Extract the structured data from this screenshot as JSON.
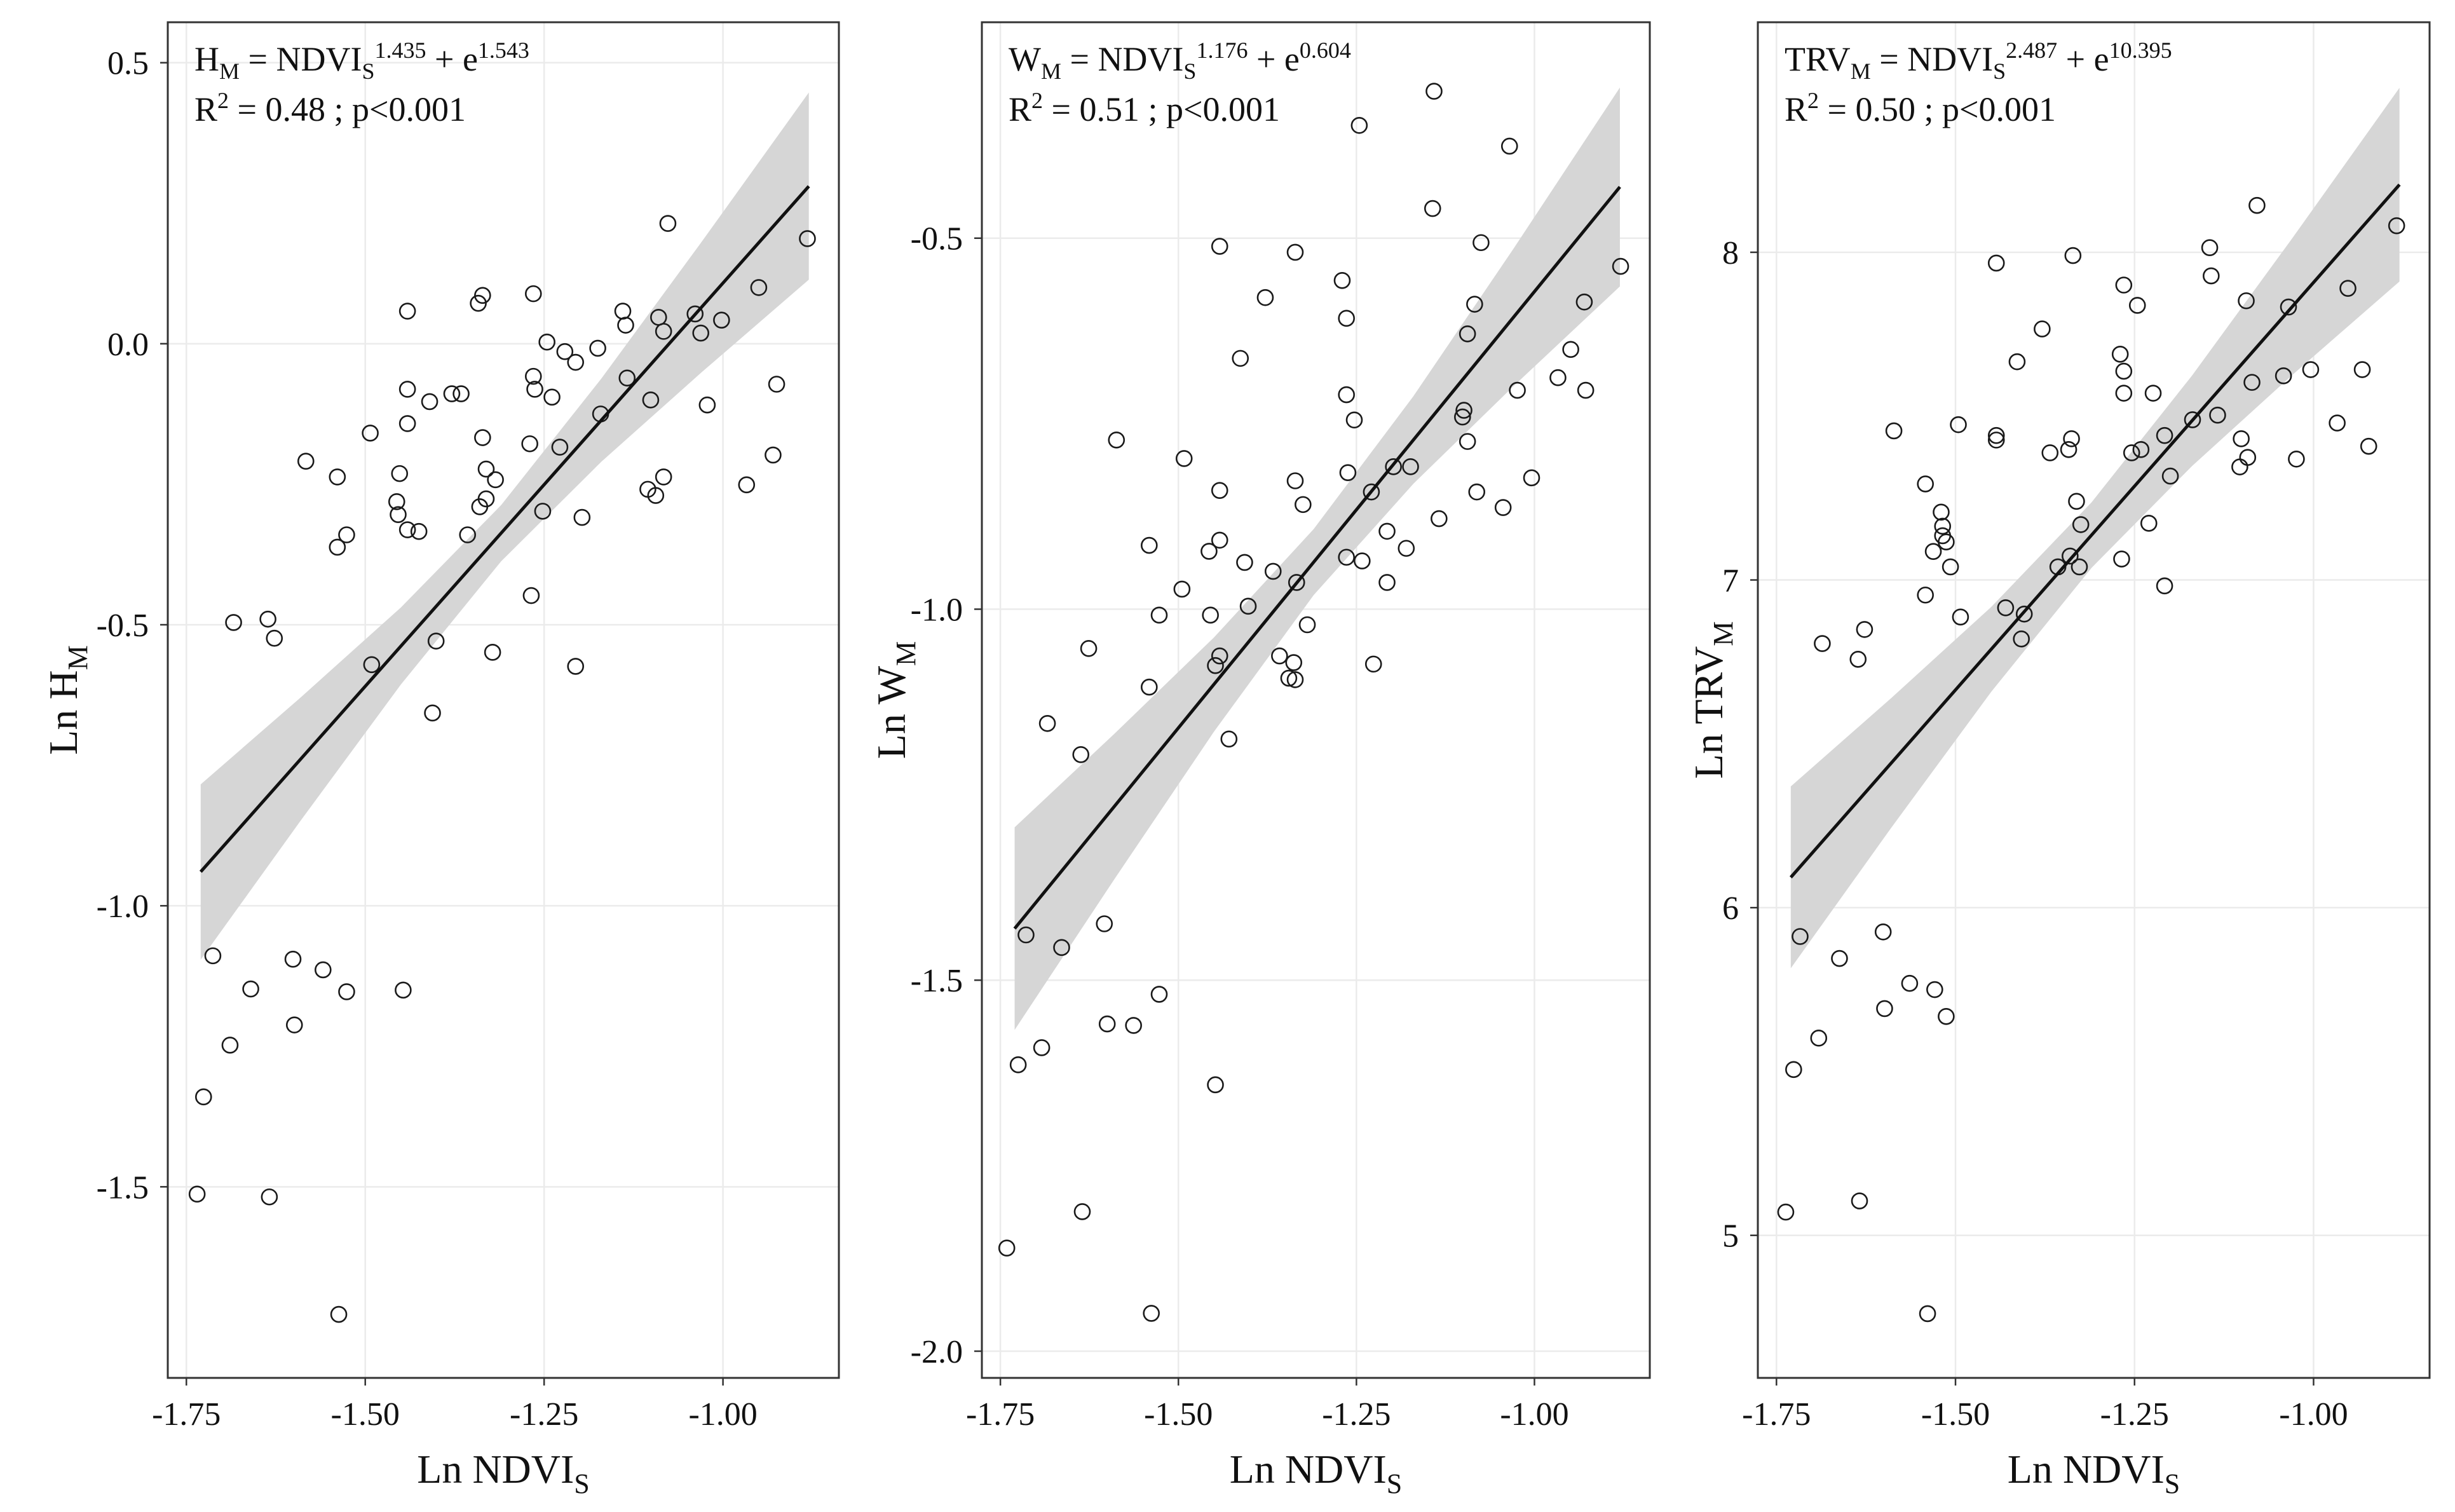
{
  "colors": {
    "points": "#1a1a1a",
    "line": "#111111",
    "band": "#d6d6d6",
    "grid": "#ebebeb",
    "border": "#333333",
    "background": "#ffffff"
  },
  "chart_data": [
    {
      "type": "scatter",
      "xlabel": "Ln NDVI",
      "xlabel_sub": "S",
      "ylabel": "Ln H",
      "ylabel_sub": "M",
      "xlim": [
        -1.776,
        -0.838
      ],
      "ylim": [
        -1.84,
        0.572
      ],
      "x_ticks": [
        -1.75,
        -1.5,
        -1.25,
        -1.0
      ],
      "x_tick_labels": [
        "-1.75",
        "-1.50",
        "-1.25",
        "-1.00"
      ],
      "y_ticks": [
        0.5,
        0.0,
        -0.5,
        -1.0,
        -1.5
      ],
      "y_tick_labels": [
        "0.5",
        "0.0",
        "-0.5",
        "-1.0",
        "-1.5"
      ],
      "grid": true,
      "annotation": {
        "lhs": "H",
        "lhs_sub": "M",
        "mid": " = NDVI",
        "mid_sub": "S",
        "slope_exp": "1.435",
        "plus": " + e",
        "int_exp": "1.543",
        "r2_label": "R",
        "r2_sup": "2",
        "r2_text": " = 0.48 ; p<0.001"
      },
      "fit": {
        "slope": 1.435,
        "intercept": 1.543,
        "x_range": [
          -1.73,
          -0.88
        ]
      },
      "ci_band": {
        "x": [
          -1.73,
          -1.59,
          -1.45,
          -1.31,
          -1.17,
          -1.03,
          -0.88
        ],
        "upper": [
          -0.784,
          -0.629,
          -0.469,
          -0.287,
          -0.062,
          0.181,
          0.447
        ],
        "lower": [
          -1.096,
          -0.848,
          -0.606,
          -0.387,
          -0.21,
          -0.051,
          0.114
        ]
      },
      "points": [
        [
          -0.882,
          0.187
        ],
        [
          -1.077,
          0.214
        ],
        [
          -1.265,
          0.089
        ],
        [
          -1.336,
          0.086
        ],
        [
          -1.342,
          0.072
        ],
        [
          -1.441,
          0.058
        ],
        [
          -1.14,
          0.058
        ],
        [
          -1.136,
          0.033
        ],
        [
          -1.09,
          0.047
        ],
        [
          -1.083,
          0.022
        ],
        [
          -1.039,
          0.053
        ],
        [
          -1.002,
          0.042
        ],
        [
          -1.031,
          0.019
        ],
        [
          -0.95,
          0.1
        ],
        [
          -1.246,
          0.003
        ],
        [
          -1.221,
          -0.014
        ],
        [
          -1.206,
          -0.033
        ],
        [
          -1.175,
          -0.008
        ],
        [
          -1.265,
          -0.058
        ],
        [
          -1.263,
          -0.081
        ],
        [
          -1.239,
          -0.095
        ],
        [
          -1.441,
          -0.081
        ],
        [
          -1.379,
          -0.089
        ],
        [
          -1.366,
          -0.089
        ],
        [
          -1.41,
          -0.103
        ],
        [
          -1.134,
          -0.061
        ],
        [
          -1.101,
          -0.1
        ],
        [
          -0.925,
          -0.072
        ],
        [
          -1.022,
          -0.109
        ],
        [
          -1.171,
          -0.125
        ],
        [
          -1.441,
          -0.142
        ],
        [
          -1.493,
          -0.159
        ],
        [
          -1.336,
          -0.167
        ],
        [
          -1.583,
          -0.209
        ],
        [
          -1.228,
          -0.184
        ],
        [
          -1.27,
          -0.178
        ],
        [
          -0.93,
          -0.198
        ],
        [
          -1.539,
          -0.237
        ],
        [
          -1.452,
          -0.231
        ],
        [
          -1.331,
          -0.223
        ],
        [
          -1.318,
          -0.242
        ],
        [
          -1.083,
          -0.237
        ],
        [
          -0.967,
          -0.251
        ],
        [
          -1.105,
          -0.259
        ],
        [
          -1.094,
          -0.27
        ],
        [
          -1.456,
          -0.281
        ],
        [
          -1.331,
          -0.276
        ],
        [
          -1.34,
          -0.29
        ],
        [
          -1.454,
          -0.304
        ],
        [
          -1.252,
          -0.298
        ],
        [
          -1.197,
          -0.309
        ],
        [
          -1.441,
          -0.331
        ],
        [
          -1.425,
          -0.334
        ],
        [
          -1.357,
          -0.34
        ],
        [
          -1.526,
          -0.34
        ],
        [
          -1.539,
          -0.362
        ],
        [
          -1.268,
          -0.448
        ],
        [
          -1.684,
          -0.496
        ],
        [
          -1.636,
          -0.49
        ],
        [
          -1.627,
          -0.524
        ],
        [
          -1.401,
          -0.529
        ],
        [
          -1.322,
          -0.549
        ],
        [
          -1.491,
          -0.571
        ],
        [
          -1.206,
          -0.574
        ],
        [
          -1.406,
          -0.657
        ],
        [
          -1.713,
          -1.089
        ],
        [
          -1.601,
          -1.095
        ],
        [
          -1.559,
          -1.114
        ],
        [
          -1.66,
          -1.148
        ],
        [
          -1.526,
          -1.153
        ],
        [
          -1.447,
          -1.15
        ],
        [
          -1.599,
          -1.212
        ],
        [
          -1.689,
          -1.248
        ],
        [
          -1.726,
          -1.34
        ],
        [
          -1.735,
          -1.513
        ],
        [
          -1.634,
          -1.518
        ],
        [
          -1.537,
          -1.727
        ]
      ]
    },
    {
      "type": "scatter",
      "xlabel": "Ln NDVI",
      "xlabel_sub": "S",
      "ylabel": "Ln W",
      "ylabel_sub": "M",
      "xlim": [
        -1.776,
        -0.838
      ],
      "ylim": [
        -2.036,
        -0.209
      ],
      "x_ticks": [
        -1.75,
        -1.5,
        -1.25,
        -1.0
      ],
      "x_tick_labels": [
        "-1.75",
        "-1.50",
        "-1.25",
        "-1.00"
      ],
      "y_ticks": [
        -0.5,
        -1.0,
        -1.5,
        -2.0
      ],
      "y_tick_labels": [
        "-0.5",
        "-1.0",
        "-1.5",
        "-2.0"
      ],
      "grid": true,
      "annotation": {
        "lhs": "W",
        "lhs_sub": "M",
        "mid": " = NDVI",
        "mid_sub": "S",
        "slope_exp": "1.176",
        "plus": " + e",
        "int_exp": "0.604",
        "r2_label": "R",
        "r2_sup": "2",
        "r2_text": " = 0.51 ; p<0.001"
      },
      "fit": {
        "slope": 1.176,
        "intercept": 0.604,
        "x_range": [
          -1.73,
          -0.88
        ]
      },
      "ci_band": {
        "x": [
          -1.73,
          -1.59,
          -1.45,
          -1.31,
          -1.17,
          -1.03,
          -0.88
        ],
        "upper": [
          -1.294,
          -1.168,
          -1.038,
          -0.892,
          -0.713,
          -0.515,
          -0.297
        ],
        "lower": [
          -1.567,
          -1.364,
          -1.165,
          -0.981,
          -0.831,
          -0.7,
          -0.565
        ]
      },
      "points": [
        [
          -1.141,
          -0.302
        ],
        [
          -1.246,
          -0.348
        ],
        [
          -1.035,
          -0.376
        ],
        [
          -1.143,
          -0.46
        ],
        [
          -1.442,
          -0.511
        ],
        [
          -1.336,
          -0.519
        ],
        [
          -1.075,
          -0.506
        ],
        [
          -0.879,
          -0.538
        ],
        [
          -1.27,
          -0.557
        ],
        [
          -1.378,
          -0.58
        ],
        [
          -1.084,
          -0.589
        ],
        [
          -0.93,
          -0.586
        ],
        [
          -1.264,
          -0.608
        ],
        [
          -1.094,
          -0.629
        ],
        [
          -1.413,
          -0.662
        ],
        [
          -0.949,
          -0.65
        ],
        [
          -0.967,
          -0.688
        ],
        [
          -1.024,
          -0.705
        ],
        [
          -0.928,
          -0.705
        ],
        [
          -1.264,
          -0.711
        ],
        [
          -1.099,
          -0.732
        ],
        [
          -1.101,
          -0.741
        ],
        [
          -1.253,
          -0.745
        ],
        [
          -1.587,
          -0.772
        ],
        [
          -1.094,
          -0.774
        ],
        [
          -1.492,
          -0.797
        ],
        [
          -1.198,
          -0.808
        ],
        [
          -1.174,
          -0.808
        ],
        [
          -1.262,
          -0.816
        ],
        [
          -1.004,
          -0.823
        ],
        [
          -1.336,
          -0.827
        ],
        [
          -1.442,
          -0.84
        ],
        [
          -1.229,
          -0.842
        ],
        [
          -1.081,
          -0.842
        ],
        [
          -1.325,
          -0.859
        ],
        [
          -1.044,
          -0.863
        ],
        [
          -1.134,
          -0.878
        ],
        [
          -1.207,
          -0.895
        ],
        [
          -1.541,
          -0.914
        ],
        [
          -1.442,
          -0.907
        ],
        [
          -1.457,
          -0.922
        ],
        [
          -1.18,
          -0.918
        ],
        [
          -1.264,
          -0.93
        ],
        [
          -1.242,
          -0.935
        ],
        [
          -1.407,
          -0.937
        ],
        [
          -1.367,
          -0.949
        ],
        [
          -1.207,
          -0.964
        ],
        [
          -1.334,
          -0.964
        ],
        [
          -1.495,
          -0.973
        ],
        [
          -1.402,
          -0.996
        ],
        [
          -1.527,
          -1.008
        ],
        [
          -1.455,
          -1.008
        ],
        [
          -1.319,
          -1.021
        ],
        [
          -1.626,
          -1.053
        ],
        [
          -1.442,
          -1.063
        ],
        [
          -1.358,
          -1.063
        ],
        [
          -1.338,
          -1.072
        ],
        [
          -1.448,
          -1.076
        ],
        [
          -1.226,
          -1.074
        ],
        [
          -1.345,
          -1.093
        ],
        [
          -1.336,
          -1.095
        ],
        [
          -1.541,
          -1.105
        ],
        [
          -1.684,
          -1.154
        ],
        [
          -1.429,
          -1.175
        ],
        [
          -1.637,
          -1.196
        ],
        [
          -1.604,
          -1.424
        ],
        [
          -1.714,
          -1.439
        ],
        [
          -1.664,
          -1.456
        ],
        [
          -1.527,
          -1.519
        ],
        [
          -1.6,
          -1.559
        ],
        [
          -1.563,
          -1.561
        ],
        [
          -1.692,
          -1.591
        ],
        [
          -1.725,
          -1.614
        ],
        [
          -1.448,
          -1.641
        ],
        [
          -1.635,
          -1.812
        ],
        [
          -1.741,
          -1.861
        ],
        [
          -1.538,
          -1.949
        ]
      ]
    },
    {
      "type": "scatter",
      "xlabel": "Ln NDVI",
      "xlabel_sub": "S",
      "ylabel": "Ln TRV",
      "ylabel_sub": "M",
      "xlim": [
        -1.776,
        -0.838
      ],
      "ylim": [
        4.565,
        8.702
      ],
      "x_ticks": [
        -1.75,
        -1.5,
        -1.25,
        -1.0
      ],
      "x_tick_labels": [
        "-1.75",
        "-1.50",
        "-1.25",
        "-1.00"
      ],
      "y_ticks": [
        8,
        7,
        6,
        5
      ],
      "y_tick_labels": [
        "8",
        "7",
        "6",
        "5"
      ],
      "grid": true,
      "annotation": {
        "lhs": "TRV",
        "lhs_sub": "M",
        "mid": " = NDVI",
        "mid_sub": "S",
        "slope_exp": "2.487",
        "plus": " + e",
        "int_exp": "10.395",
        "r2_label": "R",
        "r2_sup": "2",
        "r2_text": " = 0.50 ; p<0.001"
      },
      "fit": {
        "slope": 2.487,
        "intercept": 10.395,
        "x_range": [
          -1.73,
          -0.88
        ]
      },
      "ci_band": {
        "x": [
          -1.73,
          -1.59,
          -1.45,
          -1.31,
          -1.17,
          -1.03,
          -0.88
        ],
        "upper": [
          6.37,
          6.639,
          6.918,
          7.237,
          7.623,
          8.042,
          8.502
        ],
        "lower": [
          5.815,
          6.243,
          6.659,
          7.037,
          7.347,
          7.625,
          7.911
        ]
      },
      "points": [
        [
          -0.884,
          8.081
        ],
        [
          -1.079,
          8.143
        ],
        [
          -1.145,
          8.014
        ],
        [
          -1.336,
          7.99
        ],
        [
          -1.443,
          7.967
        ],
        [
          -1.143,
          7.928
        ],
        [
          -1.265,
          7.9
        ],
        [
          -1.246,
          7.838
        ],
        [
          -1.094,
          7.852
        ],
        [
          -1.035,
          7.833
        ],
        [
          -0.952,
          7.89
        ],
        [
          -1.379,
          7.766
        ],
        [
          -1.27,
          7.689
        ],
        [
          -1.414,
          7.666
        ],
        [
          -1.265,
          7.637
        ],
        [
          -1.042,
          7.623
        ],
        [
          -1.004,
          7.642
        ],
        [
          -0.932,
          7.642
        ],
        [
          -1.086,
          7.603
        ],
        [
          -1.265,
          7.57
        ],
        [
          -1.224,
          7.57
        ],
        [
          -1.169,
          7.489
        ],
        [
          -1.134,
          7.503
        ],
        [
          -0.967,
          7.479
        ],
        [
          -1.496,
          7.474
        ],
        [
          -1.586,
          7.455
        ],
        [
          -1.443,
          7.441
        ],
        [
          -1.443,
          7.427
        ],
        [
          -1.338,
          7.431
        ],
        [
          -1.101,
          7.431
        ],
        [
          -1.208,
          7.441
        ],
        [
          -0.923,
          7.408
        ],
        [
          -1.368,
          7.388
        ],
        [
          -1.342,
          7.398
        ],
        [
          -1.254,
          7.388
        ],
        [
          -1.241,
          7.398
        ],
        [
          -1.092,
          7.374
        ],
        [
          -1.024,
          7.369
        ],
        [
          -1.103,
          7.345
        ],
        [
          -1.2,
          7.317
        ],
        [
          -1.542,
          7.293
        ],
        [
          -1.331,
          7.24
        ],
        [
          -1.52,
          7.207
        ],
        [
          -1.518,
          7.164
        ],
        [
          -1.23,
          7.173
        ],
        [
          -1.325,
          7.169
        ],
        [
          -1.518,
          7.135
        ],
        [
          -1.513,
          7.116
        ],
        [
          -1.531,
          7.087
        ],
        [
          -1.34,
          7.073
        ],
        [
          -1.327,
          7.04
        ],
        [
          -1.268,
          7.064
        ],
        [
          -1.507,
          7.04
        ],
        [
          -1.357,
          7.04
        ],
        [
          -1.208,
          6.982
        ],
        [
          -1.542,
          6.954
        ],
        [
          -1.43,
          6.915
        ],
        [
          -1.493,
          6.887
        ],
        [
          -1.404,
          6.896
        ],
        [
          -1.408,
          6.82
        ],
        [
          -1.627,
          6.849
        ],
        [
          -1.686,
          6.806
        ],
        [
          -1.636,
          6.758
        ],
        [
          -1.717,
          5.912
        ],
        [
          -1.601,
          5.926
        ],
        [
          -1.662,
          5.845
        ],
        [
          -1.564,
          5.769
        ],
        [
          -1.529,
          5.75
        ],
        [
          -1.599,
          5.692
        ],
        [
          -1.513,
          5.668
        ],
        [
          -1.691,
          5.602
        ],
        [
          -1.726,
          5.506
        ],
        [
          -1.634,
          5.105
        ],
        [
          -1.737,
          5.071
        ],
        [
          -1.539,
          4.761
        ]
      ]
    }
  ]
}
